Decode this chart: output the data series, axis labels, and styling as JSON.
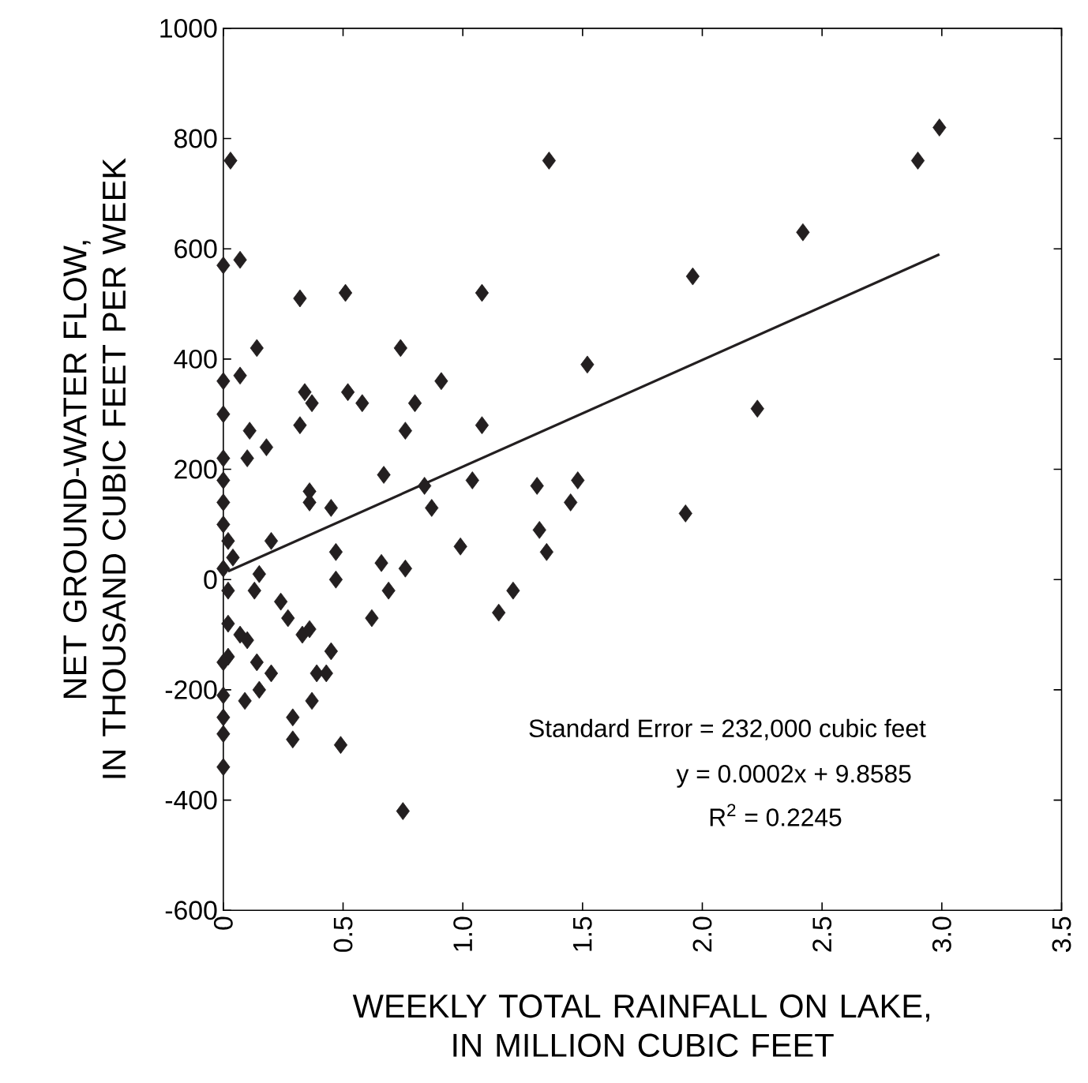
{
  "chart_data": {
    "type": "scatter",
    "xlabel": "WEEKLY TOTAL RAINFALL ON LAKE, IN MILLION CUBIC FEET",
    "ylabel": "NET GROUND-WATER FLOW, IN THOUSAND CUBIC FEET PER WEEK",
    "xlim": [
      0,
      3.5
    ],
    "ylim": [
      -600,
      1000
    ],
    "xticks": [
      0,
      0.5,
      {
        "value": 1,
        "label": "1.0"
      },
      1.5,
      {
        "value": 2,
        "label": "2.0"
      },
      2.5,
      {
        "value": 3,
        "label": "3.0"
      },
      3.5
    ],
    "yticks": [
      -600,
      -400,
      -200,
      0,
      200,
      400,
      600,
      800,
      1000
    ],
    "grid": false,
    "marker": "diamond",
    "series": [
      {
        "color": "#231f20",
        "x": [
          0.03,
          0,
          0.07,
          0.32,
          0.51,
          1.08,
          0.14,
          0.74,
          0,
          0.07,
          0.34,
          0.52,
          0.91,
          0.37,
          0.58,
          0.8,
          0,
          0.32,
          0.11,
          0.76,
          1.08,
          0.18,
          0,
          0.1,
          0,
          0.67,
          1.04,
          0.36,
          0.84,
          0,
          0.36,
          0.45,
          0.87,
          0,
          1.36,
          2.9,
          2.99,
          2.42,
          1.96,
          1.52,
          2.23,
          1.31,
          1.48,
          1.45,
          1.32,
          1.93,
          1.35,
          1.21,
          1.15,
          0.75,
          0.2,
          0.47,
          0.99,
          0.66,
          0.76,
          0.47,
          0.15,
          0.13,
          0.69,
          0.62,
          0.24,
          0.27,
          0.33,
          0.36,
          0.45,
          0.14,
          0.2,
          0.39,
          0.43,
          0.15,
          0.09,
          0.37,
          0.29,
          0.29,
          0.49,
          0.02,
          0.07,
          0.1,
          0.02,
          0,
          0,
          0,
          0,
          0,
          0.02,
          0,
          0.02,
          0.04
        ],
        "values": [
          760,
          570,
          580,
          510,
          520,
          520,
          420,
          420,
          360,
          370,
          340,
          340,
          360,
          320,
          320,
          320,
          300,
          280,
          270,
          270,
          280,
          240,
          220,
          220,
          180,
          190,
          180,
          160,
          170,
          140,
          140,
          130,
          130,
          100,
          760,
          760,
          820,
          630,
          550,
          390,
          310,
          170,
          180,
          140,
          90,
          120,
          50,
          -20,
          -60,
          -420,
          70,
          50,
          60,
          30,
          20,
          0,
          10,
          -20,
          -20,
          -70,
          -40,
          -70,
          -100,
          -90,
          -130,
          -150,
          -170,
          -170,
          -170,
          -200,
          -220,
          -220,
          -250,
          -290,
          -300,
          -80,
          -100,
          -110,
          -140,
          -150,
          -210,
          -250,
          -280,
          -340,
          70,
          20,
          -20,
          40
        ]
      },
      {
        "type": "line",
        "color": "#231f20",
        "marker": "none",
        "line_style": "solid",
        "x": [
          0.02,
          2.99
        ],
        "values": [
          15,
          590
        ]
      }
    ],
    "annotations": [
      "Standard Error = 232,000 cubic feet",
      "y = 0.0002x + 9.8585",
      "R$^{2}$ = 0.2245"
    ]
  }
}
